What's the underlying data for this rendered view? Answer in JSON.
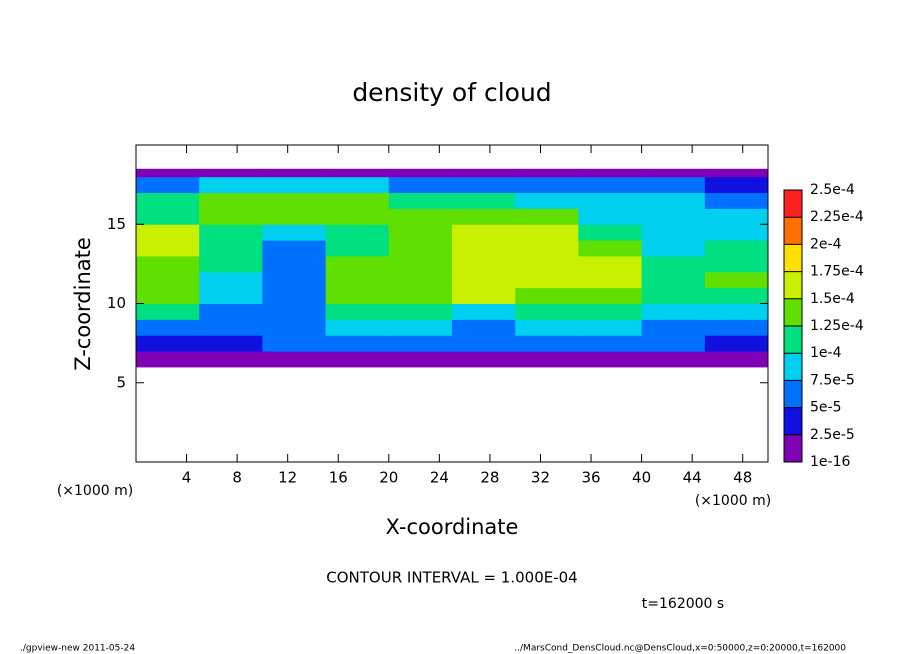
{
  "chart_data": {
    "type": "heatmap",
    "title": "density of cloud",
    "xlabel": "X-coordinate",
    "ylabel": "Z-coordinate",
    "xlabel_unit": "(×1000 m)",
    "ylabel_unit": "(×1000 m)",
    "contour_note": "CONTOUR INTERVAL = 1.000E-04",
    "time_note": "t=162000 s",
    "footer_left": "./gpview-new  2011-05-24",
    "footer_right": "../MarsCond_DensCloud.nc@DensCloud,x=0:50000,z=0:20000,t=162000",
    "xlim": [
      0,
      50
    ],
    "ylim": [
      0,
      20
    ],
    "xticks": [
      4,
      8,
      12,
      16,
      20,
      24,
      28,
      32,
      36,
      40,
      44,
      48
    ],
    "yticks": [
      5,
      10,
      15
    ],
    "x_edges": [
      0,
      5,
      10,
      15,
      20,
      25,
      30,
      35,
      40,
      45,
      50
    ],
    "y_edges": [
      6,
      7,
      8,
      9,
      10,
      11,
      12,
      13,
      14,
      15,
      16,
      17,
      18,
      18.5
    ],
    "z": [
      [
        1e-05,
        1e-05,
        1e-05,
        1e-05,
        1e-05,
        1e-05,
        1e-05,
        1e-05,
        1e-05,
        1e-05
      ],
      [
        4e-05,
        4e-05,
        5e-05,
        5e-05,
        5e-05,
        5e-05,
        5e-05,
        5e-05,
        5e-05,
        4e-05
      ],
      [
        7e-05,
        6e-05,
        6e-05,
        8e-05,
        8e-05,
        7e-05,
        8e-05,
        8e-05,
        7e-05,
        7e-05
      ],
      [
        0.0001,
        7e-05,
        6e-05,
        0.00011,
        0.00011,
        9e-05,
        0.0001,
        0.0001,
        8e-05,
        9e-05
      ],
      [
        0.00013,
        8e-05,
        6e-05,
        0.00013,
        0.00014,
        0.00015,
        0.00014,
        0.00013,
        0.00011,
        0.00012
      ],
      [
        0.00014,
        9e-05,
        5e-05,
        0.00014,
        0.00014,
        0.00016,
        0.00016,
        0.00015,
        0.00012,
        0.00013
      ],
      [
        0.00014,
        0.00011,
        6e-05,
        0.00013,
        0.00014,
        0.00016,
        0.00016,
        0.00015,
        0.00011,
        0.00012
      ],
      [
        0.00015,
        0.00011,
        7e-05,
        0.00012,
        0.00014,
        0.00016,
        0.00016,
        0.00013,
        9e-05,
        0.00011
      ],
      [
        0.00015,
        0.00012,
        9e-05,
        0.00012,
        0.00014,
        0.00016,
        0.00015,
        0.00011,
        8e-05,
        9e-05
      ],
      [
        0.00012,
        0.00014,
        0.00013,
        0.00013,
        0.00013,
        0.00014,
        0.00013,
        9e-05,
        9e-05,
        8e-05
      ],
      [
        0.0001,
        0.00013,
        0.00013,
        0.00013,
        0.00011,
        0.00012,
        9e-05,
        8e-05,
        8e-05,
        7e-05
      ],
      [
        5e-05,
        8e-05,
        8e-05,
        9e-05,
        7e-05,
        6e-05,
        5e-05,
        5e-05,
        5e-05,
        4e-05
      ],
      [
        1e-05,
        1e-05,
        1e-05,
        1e-05,
        1e-05,
        1e-05,
        1e-05,
        1e-05,
        1e-05,
        1e-05
      ]
    ],
    "levels": [
      {
        "value": 1e-16,
        "label": "1e-16"
      },
      {
        "value": 2.5e-05,
        "label": "2.5e-5"
      },
      {
        "value": 5e-05,
        "label": "5e-5"
      },
      {
        "value": 7.5e-05,
        "label": "7.5e-5"
      },
      {
        "value": 0.0001,
        "label": "1e-4"
      },
      {
        "value": 0.000125,
        "label": "1.25e-4"
      },
      {
        "value": 0.00015,
        "label": "1.5e-4"
      },
      {
        "value": 0.000175,
        "label": "1.75e-4"
      },
      {
        "value": 0.0002,
        "label": "2e-4"
      },
      {
        "value": 0.000225,
        "label": "2.25e-4"
      },
      {
        "value": 0.00025,
        "label": "2.5e-4"
      }
    ],
    "colors": [
      "#8000b8",
      "#1010e0",
      "#0070ff",
      "#00d0f0",
      "#00e080",
      "#60e000",
      "#c8f000",
      "#ffe000",
      "#ff7000",
      "#ff2020"
    ]
  }
}
